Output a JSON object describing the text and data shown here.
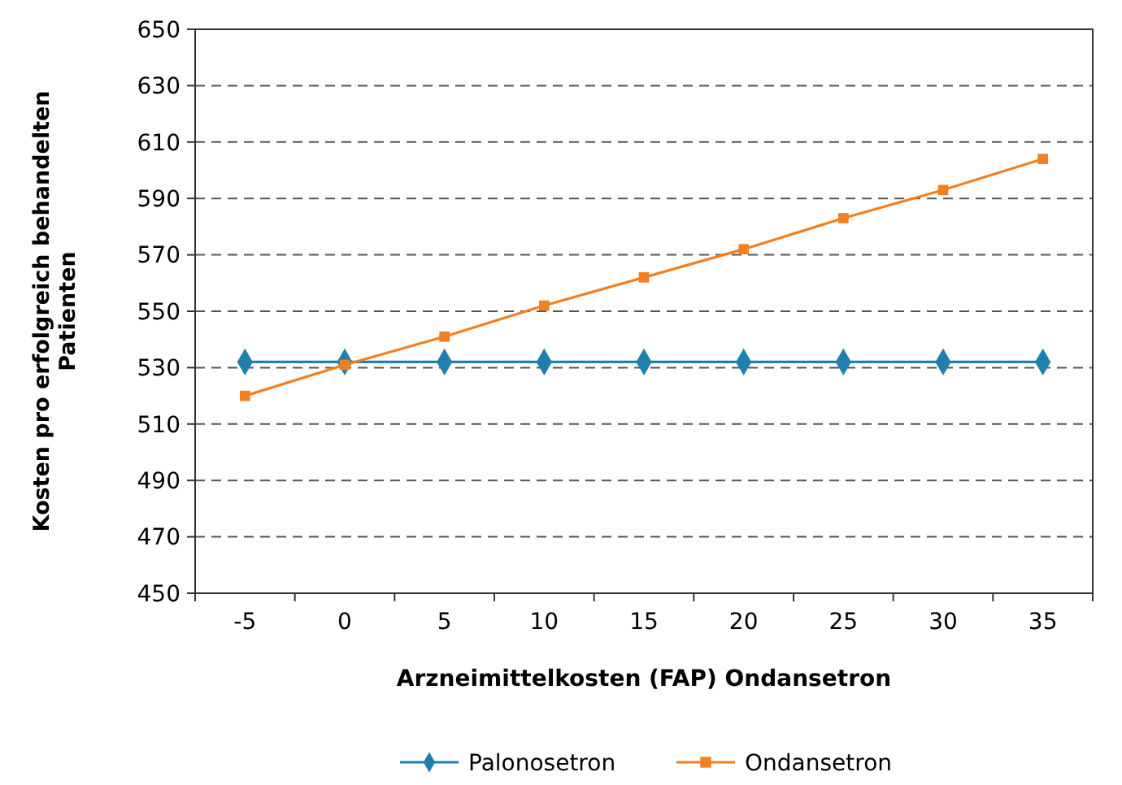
{
  "chart_data": {
    "type": "line",
    "xlabel": "Arzneimittelkosten (FAP) Ondansetron",
    "ylabel": "Kosten pro erfolgreich behandelten\nPatienten",
    "categories": [
      "-5",
      "0",
      "5",
      "10",
      "15",
      "20",
      "25",
      "30",
      "35"
    ],
    "series": [
      {
        "name": "Palonosetron",
        "color": "#1f7fad",
        "marker": "diamond",
        "values": [
          532,
          532,
          532,
          532,
          532,
          532,
          532,
          532,
          532
        ]
      },
      {
        "name": "Ondansetron",
        "color": "#f47f20",
        "marker": "square",
        "values": [
          520,
          531,
          541,
          552,
          562,
          572,
          583,
          593,
          604
        ]
      }
    ],
    "ylim": [
      450,
      650
    ],
    "yticks": [
      450,
      470,
      490,
      510,
      530,
      550,
      570,
      590,
      610,
      630,
      650
    ],
    "grid": "y",
    "line_style": "solid",
    "legend": "bottom"
  }
}
